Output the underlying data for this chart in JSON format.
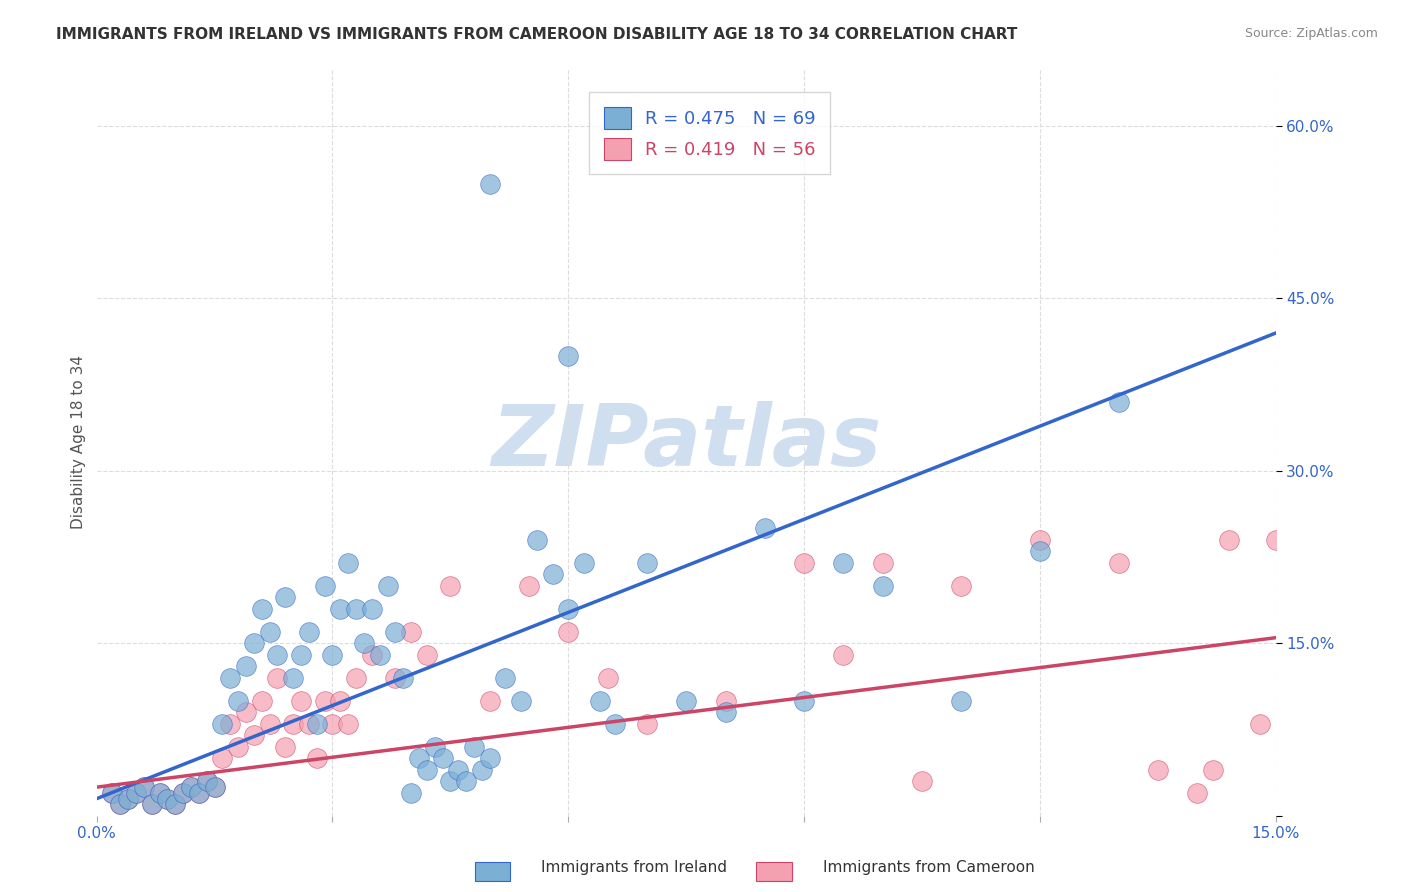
{
  "title": "IMMIGRANTS FROM IRELAND VS IMMIGRANTS FROM CAMEROON DISABILITY AGE 18 TO 34 CORRELATION CHART",
  "source": "Source: ZipAtlas.com",
  "xlabel": "",
  "ylabel": "Disability Age 18 to 34",
  "xlim": [
    0.0,
    0.15
  ],
  "ylim": [
    0.0,
    0.65
  ],
  "x_ticks": [
    0.0,
    0.03,
    0.06,
    0.09,
    0.12,
    0.15
  ],
  "x_tick_labels": [
    "0.0%",
    "",
    "",
    "",
    "",
    "15.0%"
  ],
  "y_ticks_right": [
    0.0,
    0.15,
    0.3,
    0.45,
    0.6
  ],
  "y_tick_labels_right": [
    "",
    "15.0%",
    "30.0%",
    "45.0%",
    "60.0%"
  ],
  "ireland_color": "#7bafd4",
  "cameroon_color": "#f4a0b0",
  "ireland_line_color": "#3366cc",
  "cameroon_line_color": "#cc4466",
  "ireland_R": 0.475,
  "ireland_N": 69,
  "cameroon_R": 0.419,
  "cameroon_N": 56,
  "ireland_scatter_x": [
    0.002,
    0.003,
    0.004,
    0.005,
    0.006,
    0.007,
    0.008,
    0.009,
    0.01,
    0.011,
    0.012,
    0.013,
    0.014,
    0.015,
    0.016,
    0.017,
    0.018,
    0.019,
    0.02,
    0.021,
    0.022,
    0.023,
    0.024,
    0.025,
    0.026,
    0.027,
    0.028,
    0.029,
    0.03,
    0.031,
    0.032,
    0.033,
    0.034,
    0.035,
    0.036,
    0.037,
    0.038,
    0.039,
    0.04,
    0.041,
    0.042,
    0.043,
    0.044,
    0.045,
    0.046,
    0.047,
    0.048,
    0.049,
    0.05,
    0.052,
    0.054,
    0.056,
    0.058,
    0.06,
    0.062,
    0.064,
    0.066,
    0.07,
    0.075,
    0.08,
    0.085,
    0.09,
    0.095,
    0.1,
    0.11,
    0.12,
    0.13,
    0.05,
    0.06
  ],
  "ireland_scatter_y": [
    0.02,
    0.01,
    0.015,
    0.02,
    0.025,
    0.01,
    0.02,
    0.015,
    0.01,
    0.02,
    0.025,
    0.02,
    0.03,
    0.025,
    0.08,
    0.12,
    0.1,
    0.13,
    0.15,
    0.18,
    0.16,
    0.14,
    0.19,
    0.12,
    0.14,
    0.16,
    0.08,
    0.2,
    0.14,
    0.18,
    0.22,
    0.18,
    0.15,
    0.18,
    0.14,
    0.2,
    0.16,
    0.12,
    0.02,
    0.05,
    0.04,
    0.06,
    0.05,
    0.03,
    0.04,
    0.03,
    0.06,
    0.04,
    0.05,
    0.12,
    0.1,
    0.24,
    0.21,
    0.18,
    0.22,
    0.1,
    0.08,
    0.22,
    0.1,
    0.09,
    0.25,
    0.1,
    0.22,
    0.2,
    0.1,
    0.23,
    0.36,
    0.55,
    0.4
  ],
  "cameroon_scatter_x": [
    0.002,
    0.003,
    0.004,
    0.005,
    0.006,
    0.007,
    0.008,
    0.009,
    0.01,
    0.011,
    0.012,
    0.013,
    0.014,
    0.015,
    0.016,
    0.017,
    0.018,
    0.019,
    0.02,
    0.021,
    0.022,
    0.023,
    0.024,
    0.025,
    0.026,
    0.027,
    0.028,
    0.029,
    0.03,
    0.031,
    0.032,
    0.033,
    0.035,
    0.038,
    0.04,
    0.042,
    0.045,
    0.05,
    0.055,
    0.06,
    0.065,
    0.07,
    0.08,
    0.09,
    0.095,
    0.1,
    0.105,
    0.11,
    0.12,
    0.13,
    0.135,
    0.14,
    0.142,
    0.144,
    0.148,
    0.15
  ],
  "cameroon_scatter_y": [
    0.02,
    0.01,
    0.015,
    0.02,
    0.025,
    0.01,
    0.02,
    0.015,
    0.01,
    0.02,
    0.025,
    0.02,
    0.03,
    0.025,
    0.05,
    0.08,
    0.06,
    0.09,
    0.07,
    0.1,
    0.08,
    0.12,
    0.06,
    0.08,
    0.1,
    0.08,
    0.05,
    0.1,
    0.08,
    0.1,
    0.08,
    0.12,
    0.14,
    0.12,
    0.16,
    0.14,
    0.2,
    0.1,
    0.2,
    0.16,
    0.12,
    0.08,
    0.1,
    0.22,
    0.14,
    0.22,
    0.03,
    0.2,
    0.24,
    0.22,
    0.04,
    0.02,
    0.04,
    0.24,
    0.08,
    0.24
  ],
  "ireland_line_x": [
    0.0,
    0.15
  ],
  "ireland_line_y": [
    0.015,
    0.42
  ],
  "cameroon_line_x": [
    0.0,
    0.15
  ],
  "cameroon_line_y": [
    0.025,
    0.155
  ],
  "background_color": "#ffffff",
  "grid_color": "#dddddd",
  "watermark_text": "ZIPatlas",
  "watermark_color": "#d0dff0"
}
